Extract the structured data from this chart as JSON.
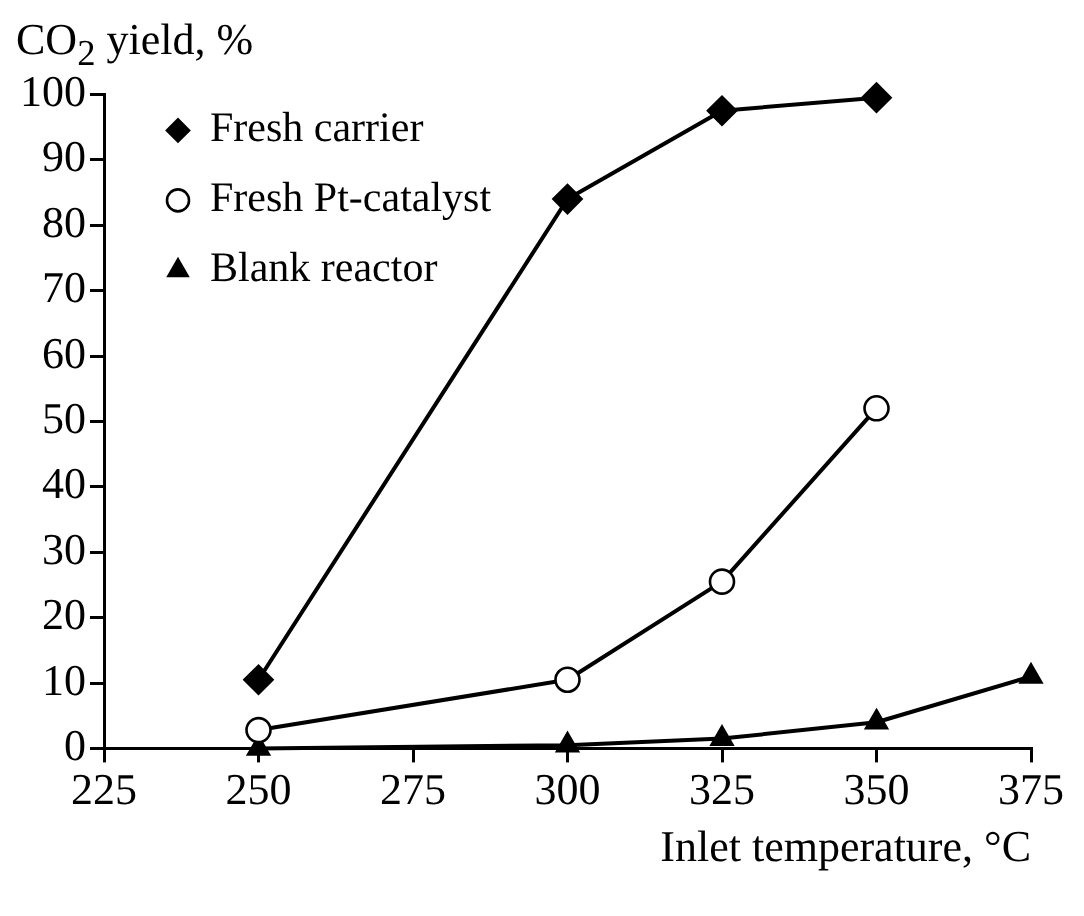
{
  "chart_data": {
    "type": "line",
    "ylabel": "CO$_{2}$ yield, %",
    "xlabel": "Inlet temperature, °C",
    "xlim": [
      225,
      375
    ],
    "xticks": [
      225,
      250,
      275,
      300,
      325,
      350,
      375
    ],
    "ylim": [
      0,
      100
    ],
    "yticks": [
      0,
      10,
      20,
      30,
      40,
      50,
      60,
      70,
      80,
      90,
      100
    ],
    "grid": false,
    "legend": "top left",
    "line_style": "solid",
    "series": [
      {
        "name": "Fresh carrier",
        "color": "#000000",
        "marker": "diamond",
        "x": [
          250,
          300,
          325,
          350
        ],
        "values": [
          10.5,
          84,
          97.5,
          99.5
        ]
      },
      {
        "name": "Fresh Pt-catalyst",
        "color": "#000000",
        "marker": "circle",
        "x": [
          250,
          300,
          325,
          350
        ],
        "values": [
          2.8,
          10.5,
          25.5,
          52
        ]
      },
      {
        "name": "Blank reactor",
        "color": "#000000",
        "marker": "triangle",
        "x": [
          250,
          300,
          325,
          350,
          375
        ],
        "values": [
          0,
          0.5,
          1.5,
          4,
          11
        ]
      }
    ]
  }
}
